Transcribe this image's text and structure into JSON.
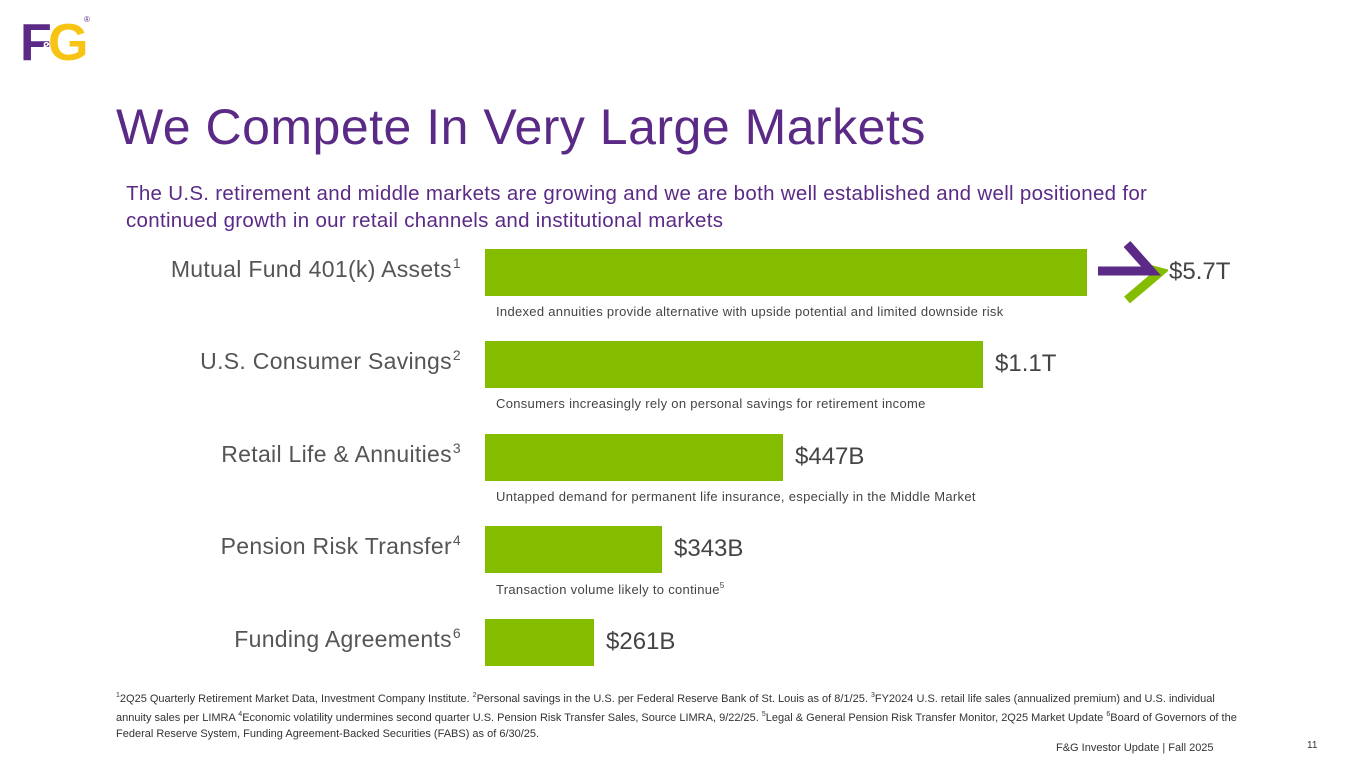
{
  "logo": {
    "brand": "F&G",
    "registered": "®"
  },
  "title": "We Compete In Very Large Markets",
  "subtitle": "The U.S. retirement and middle markets are growing and we are both well established and well positioned for continued growth in our retail channels and institutional markets",
  "chart_data": {
    "type": "bar",
    "orientation": "horizontal",
    "unit": "USD billions",
    "categories": [
      {
        "label": "Mutual Fund 401(k) Assets",
        "footnote": "1",
        "value": 5700,
        "display": "$5.7T",
        "note": "Indexed annuities provide alternative with upside potential and limited downside risk",
        "note_footnote": "",
        "arrow": true
      },
      {
        "label": "U.S. Consumer Savings",
        "footnote": "2",
        "value": 1100,
        "display": "$1.1T",
        "note": "Consumers increasingly rely on personal savings for retirement income",
        "note_footnote": "",
        "arrow": false
      },
      {
        "label": "Retail Life & Annuities",
        "footnote": "3",
        "value": 447,
        "display": "$447B",
        "note": "Untapped demand for permanent life insurance, especially in the Middle Market",
        "note_footnote": "",
        "arrow": false
      },
      {
        "label": "Pension Risk Transfer",
        "footnote": "4",
        "value": 343,
        "display": "$343B",
        "note": "Transaction volume likely to continue",
        "note_footnote": "5",
        "arrow": false
      },
      {
        "label": "Funding Agreements",
        "footnote": "6",
        "value": 261,
        "display": "$261B",
        "note": "",
        "note_footnote": "",
        "arrow": false
      }
    ],
    "colors": {
      "bar": "#84bd00",
      "label": "#555555",
      "arrow_purple": "#5b2a86",
      "arrow_green": "#84bd00"
    }
  },
  "footnotes": [
    {
      "num": "1",
      "text": "2Q25 Quarterly Retirement Market Data, Investment Company Institute. "
    },
    {
      "num": "2",
      "text": "Personal savings in the U.S. per Federal Reserve Bank of St. Louis as of 8/1/25. "
    },
    {
      "num": "3",
      "text": "FY2024 U.S. retail life sales (annualized premium) and U.S. individual annuity sales per LIMRA "
    },
    {
      "num": "4",
      "text": "Economic volatility undermines second quarter U.S. Pension Risk Transfer Sales, Source LIMRA, 9/22/25. "
    },
    {
      "num": "5",
      "text": "Legal & General Pension Risk Transfer Monitor, 2Q25 Market Update "
    },
    {
      "num": "6",
      "text": "Board of Governors of the Federal Reserve System, Funding Agreement-Backed Securities (FABS) as of 6/30/25."
    }
  ],
  "footer": {
    "text": "F&G Investor Update |  Fall 2025",
    "page": "11"
  }
}
